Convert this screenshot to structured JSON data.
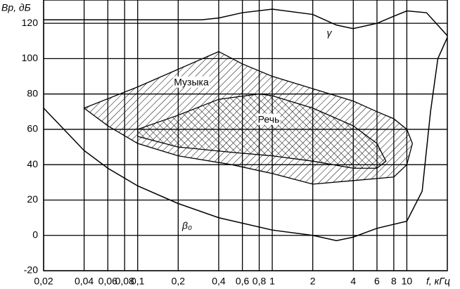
{
  "chart_data": {
    "type": "line",
    "y_label": "Bр, дБ",
    "x_label": "f, кГц",
    "xlog": true,
    "grid": true,
    "xlim": [
      0.02,
      20
    ],
    "ylim": [
      -20,
      130
    ],
    "xticks": [
      {
        "value": 0.02,
        "label": "0,02"
      },
      {
        "value": 0.04,
        "label": "0,04"
      },
      {
        "value": 0.06,
        "label": "0,06"
      },
      {
        "value": 0.08,
        "label": "0,08"
      },
      {
        "value": 0.1,
        "label": "0,1"
      },
      {
        "value": 0.2,
        "label": "0,2"
      },
      {
        "value": 0.4,
        "label": "0,4"
      },
      {
        "value": 0.6,
        "label": "0,6"
      },
      {
        "value": 0.8,
        "label": "0,8"
      },
      1,
      2,
      4,
      6,
      8,
      10
    ],
    "yticks": [
      -20,
      0,
      20,
      40,
      60,
      80,
      100,
      120
    ],
    "series": [
      {
        "name": "γ",
        "color": "#000000",
        "fill": "none",
        "x": [
          0.02,
          0.1,
          0.3,
          0.4,
          0.6,
          1,
          2,
          3,
          4,
          6,
          8,
          10,
          14,
          20
        ],
        "values": [
          122,
          122,
          122,
          123,
          126,
          128,
          125,
          119,
          117,
          120,
          124,
          127,
          126,
          113
        ]
      },
      {
        "name": "β₀",
        "color": "#000000",
        "fill": "none",
        "x": [
          0.02,
          0.03,
          0.04,
          0.06,
          0.1,
          0.2,
          0.4,
          1,
          2,
          3,
          4,
          6,
          10,
          13,
          15,
          17,
          20
        ],
        "values": [
          72,
          58,
          48,
          38,
          28,
          18,
          10,
          3,
          0,
          -3,
          -1,
          4,
          8,
          25,
          70,
          100,
          112
        ]
      },
      {
        "name": "Музыка",
        "color": "#000000",
        "fill": "hatch",
        "x": [
          0.04,
          0.1,
          0.2,
          0.4,
          0.6,
          1,
          2,
          4,
          6,
          8,
          10,
          11,
          10,
          8,
          4,
          2,
          1,
          0.5,
          0.2,
          0.1,
          0.06
        ],
        "values": [
          72,
          84,
          94,
          104,
          97,
          90,
          83,
          76,
          70,
          66,
          60,
          52,
          40,
          33,
          31,
          29,
          35,
          40,
          45,
          52,
          62
        ]
      },
      {
        "name": "Речь",
        "color": "#000000",
        "fill": "cross",
        "x": [
          0.1,
          0.2,
          0.4,
          0.8,
          1,
          2,
          4,
          6,
          7,
          6,
          4,
          2,
          1,
          0.5,
          0.2,
          0.1
        ],
        "values": [
          60,
          68,
          77,
          80,
          79,
          72,
          62,
          52,
          42,
          38,
          38,
          42,
          45,
          47,
          50,
          56
        ]
      }
    ]
  }
}
